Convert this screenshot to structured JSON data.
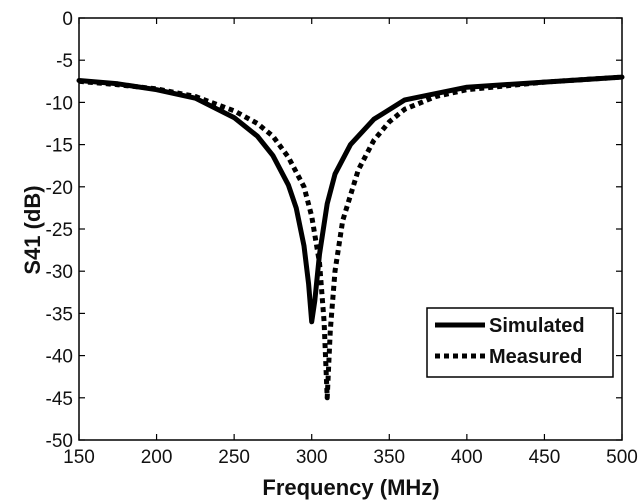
{
  "chart_data": {
    "type": "line",
    "title": "",
    "xlabel": "Frequency (MHz)",
    "ylabel": "S41 (dB)",
    "xlim": [
      150,
      500
    ],
    "ylim": [
      -50,
      0
    ],
    "xticks": [
      150,
      200,
      250,
      300,
      350,
      400,
      450,
      500
    ],
    "yticks": [
      0,
      -5,
      -10,
      -15,
      -20,
      -25,
      -30,
      -35,
      -40,
      -45,
      -50
    ],
    "grid": false,
    "legend_position": "lower-right",
    "series": [
      {
        "name": "Simulated",
        "style": "solid",
        "color": "#000000",
        "x": [
          150,
          175,
          200,
          225,
          250,
          265,
          275,
          285,
          290,
          295,
          298,
          300,
          302,
          305,
          310,
          315,
          325,
          340,
          360,
          400,
          450,
          500
        ],
        "y": [
          -7.4,
          -7.8,
          -8.5,
          -9.5,
          -11.8,
          -14.0,
          -16.3,
          -19.8,
          -22.5,
          -27.0,
          -31.5,
          -36.0,
          -33.5,
          -28.0,
          -22.0,
          -18.5,
          -15.0,
          -12.0,
          -9.7,
          -8.2,
          -7.6,
          -7.0
        ]
      },
      {
        "name": "Measured",
        "style": "dotted",
        "color": "#000000",
        "x": [
          150,
          175,
          200,
          225,
          250,
          265,
          275,
          285,
          295,
          300,
          305,
          308,
          310,
          312,
          315,
          320,
          330,
          340,
          350,
          360,
          380,
          400,
          450,
          500
        ],
        "y": [
          -7.5,
          -7.9,
          -8.4,
          -9.3,
          -11.0,
          -12.5,
          -14.0,
          -16.5,
          -20.0,
          -23.5,
          -29.0,
          -36.0,
          -45.0,
          -37.0,
          -30.0,
          -24.0,
          -18.0,
          -14.5,
          -12.3,
          -10.8,
          -9.3,
          -8.5,
          -7.6,
          -7.0
        ]
      }
    ]
  },
  "legend": {
    "simulated_label": "Simulated",
    "measured_label": "Measured"
  },
  "axes": {
    "xlabel": "Frequency (MHz)",
    "ylabel": "S41 (dB)"
  }
}
